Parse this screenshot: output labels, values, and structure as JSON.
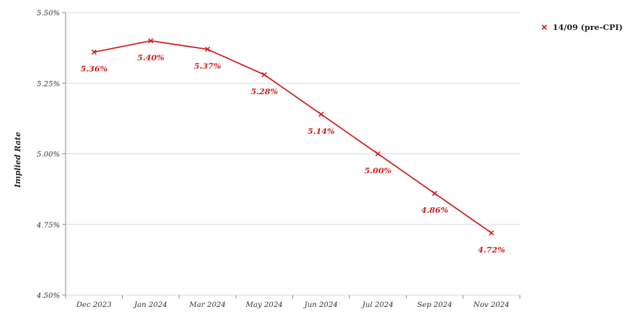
{
  "chart_data": {
    "type": "line",
    "title": "",
    "xlabel": "",
    "ylabel": "Implied Rate",
    "categories": [
      "Dec 2023",
      "Jan 2024",
      "Mar 2024",
      "May 2024",
      "Jun 2024",
      "Jul 2024",
      "Sep 2024",
      "Nov 2024"
    ],
    "series": [
      {
        "name": "14/09 (pre-CPI)",
        "values": [
          5.36,
          5.4,
          5.37,
          5.28,
          5.14,
          5.0,
          4.86,
          4.72
        ],
        "data_labels": [
          "5.36%",
          "5.40%",
          "5.37%",
          "5.28%",
          "5.14%",
          "5.00%",
          "4.86%",
          "4.72%"
        ],
        "color": "#cc1f1f",
        "marker": "x"
      }
    ],
    "ylim": [
      4.5,
      5.5
    ],
    "yticks": [
      4.5,
      4.75,
      5.0,
      5.25,
      5.5
    ],
    "ytick_labels": [
      "4.50%",
      "4.75%",
      "5.00%",
      "5.25%",
      "5.50%"
    ],
    "grid": "horizontal",
    "legend_position": "top-right"
  }
}
